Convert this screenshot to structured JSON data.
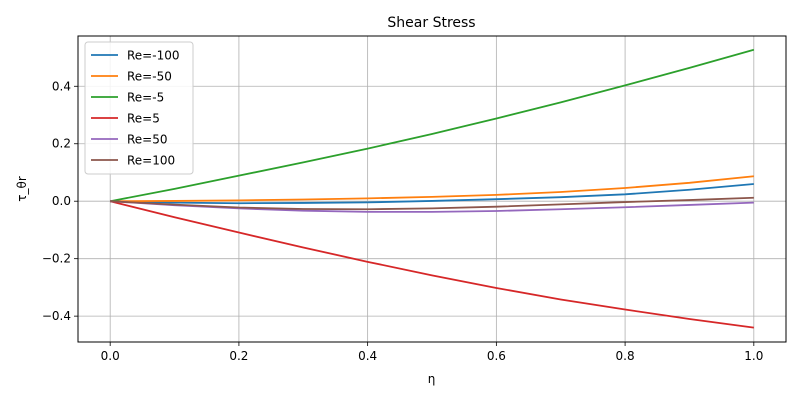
{
  "chart_data": {
    "type": "line",
    "title": "Shear Stress",
    "xlabel": "η",
    "ylabel": "τ_θr",
    "xlim": [
      -0.05,
      1.05
    ],
    "ylim": [
      -0.49,
      0.575
    ],
    "xticks": [
      0.0,
      0.2,
      0.4,
      0.6,
      0.8,
      1.0
    ],
    "xtick_labels": [
      "0.0",
      "0.2",
      "0.4",
      "0.6",
      "0.8",
      "1.0"
    ],
    "yticks": [
      -0.4,
      -0.2,
      0.0,
      0.2,
      0.4
    ],
    "ytick_labels": [
      "−0.4",
      "−0.2",
      "0.0",
      "0.2",
      "0.4"
    ],
    "grid": true,
    "legend": "upper-left",
    "x": [
      0.0,
      0.1,
      0.2,
      0.3,
      0.4,
      0.5,
      0.6,
      0.7,
      0.8,
      0.9,
      1.0
    ],
    "series": [
      {
        "name": "Re=-100",
        "color": "#1f77b4",
        "values": [
          0.0,
          -0.005,
          -0.007,
          -0.006,
          -0.004,
          0.001,
          0.007,
          0.014,
          0.024,
          0.04,
          0.06
        ]
      },
      {
        "name": "Re=-50",
        "color": "#ff7f0e",
        "values": [
          0.0,
          0.001,
          0.003,
          0.006,
          0.01,
          0.015,
          0.022,
          0.032,
          0.046,
          0.064,
          0.087
        ]
      },
      {
        "name": "Re=-5",
        "color": "#2ca02c",
        "values": [
          0.0,
          0.043,
          0.089,
          0.135,
          0.183,
          0.234,
          0.288,
          0.344,
          0.403,
          0.464,
          0.527
        ]
      },
      {
        "name": "Re=5",
        "color": "#d62728",
        "values": [
          0.0,
          -0.056,
          -0.109,
          -0.161,
          -0.211,
          -0.258,
          -0.302,
          -0.342,
          -0.377,
          -0.41,
          -0.44
        ]
      },
      {
        "name": "Re=50",
        "color": "#9467bd",
        "values": [
          0.0,
          -0.014,
          -0.025,
          -0.033,
          -0.037,
          -0.037,
          -0.034,
          -0.028,
          -0.021,
          -0.013,
          -0.005
        ]
      },
      {
        "name": "Re=100",
        "color": "#8c564b",
        "values": [
          0.0,
          -0.012,
          -0.022,
          -0.027,
          -0.028,
          -0.025,
          -0.019,
          -0.011,
          -0.003,
          0.004,
          0.012
        ]
      }
    ]
  }
}
